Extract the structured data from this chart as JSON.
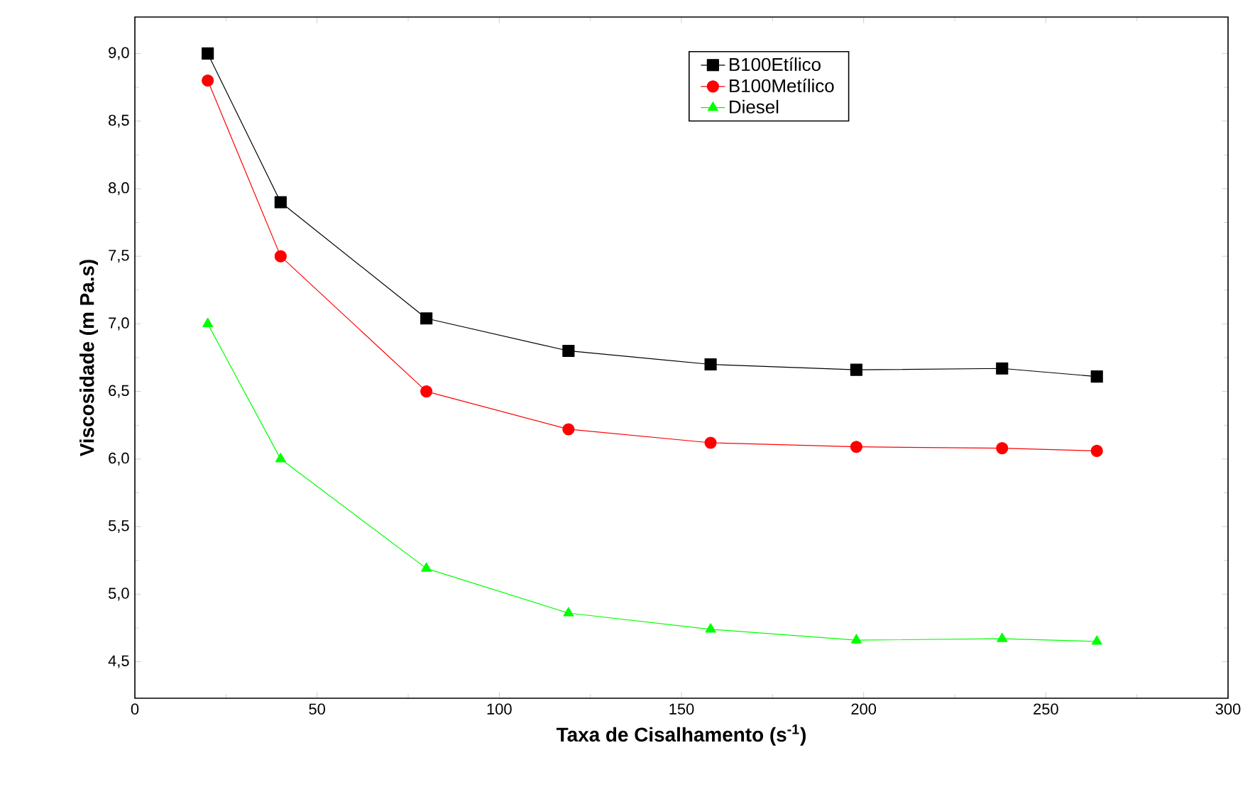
{
  "chart_data": {
    "type": "line",
    "xlabel": "Taxa de  Cisalhamento (s$^{-1}$)",
    "ylabel": "Viscosidade (m Pa.s)",
    "x": [
      20,
      40,
      80,
      119,
      158,
      198,
      238,
      264
    ],
    "series": [
      {
        "name": "B100Etílico",
        "color": "#000000",
        "marker": "square",
        "values": [
          9.0,
          7.9,
          7.04,
          6.8,
          6.7,
          6.66,
          6.67,
          6.61
        ]
      },
      {
        "name": "B100Metílico",
        "color": "#ff0000",
        "marker": "circle",
        "values": [
          8.8,
          7.5,
          6.5,
          6.22,
          6.12,
          6.09,
          6.08,
          6.06
        ]
      },
      {
        "name": "Diesel",
        "color": "#00ff00",
        "marker": "triangle",
        "values": [
          7.0,
          6.0,
          5.19,
          4.86,
          4.74,
          4.66,
          4.67,
          4.65
        ]
      }
    ],
    "xlim": [
      0,
      300
    ],
    "xticks": [
      0,
      50,
      100,
      150,
      200,
      250,
      300
    ],
    "ylim": [
      4.23,
      9.27
    ],
    "yticks": [
      {
        "value": 4.5,
        "label": "4,5"
      },
      {
        "value": 5.0,
        "label": "5,0"
      },
      {
        "value": 5.5,
        "label": "5,5"
      },
      {
        "value": 6.0,
        "label": "6,0"
      },
      {
        "value": 6.5,
        "label": "6,5"
      },
      {
        "value": 7.0,
        "label": "7,0"
      },
      {
        "value": 7.5,
        "label": "7,5"
      },
      {
        "value": 8.0,
        "label": "8,0"
      },
      {
        "value": 8.5,
        "label": "8,5"
      },
      {
        "value": 9.0,
        "label": "9,0"
      }
    ],
    "grid": false,
    "legend": "top"
  }
}
